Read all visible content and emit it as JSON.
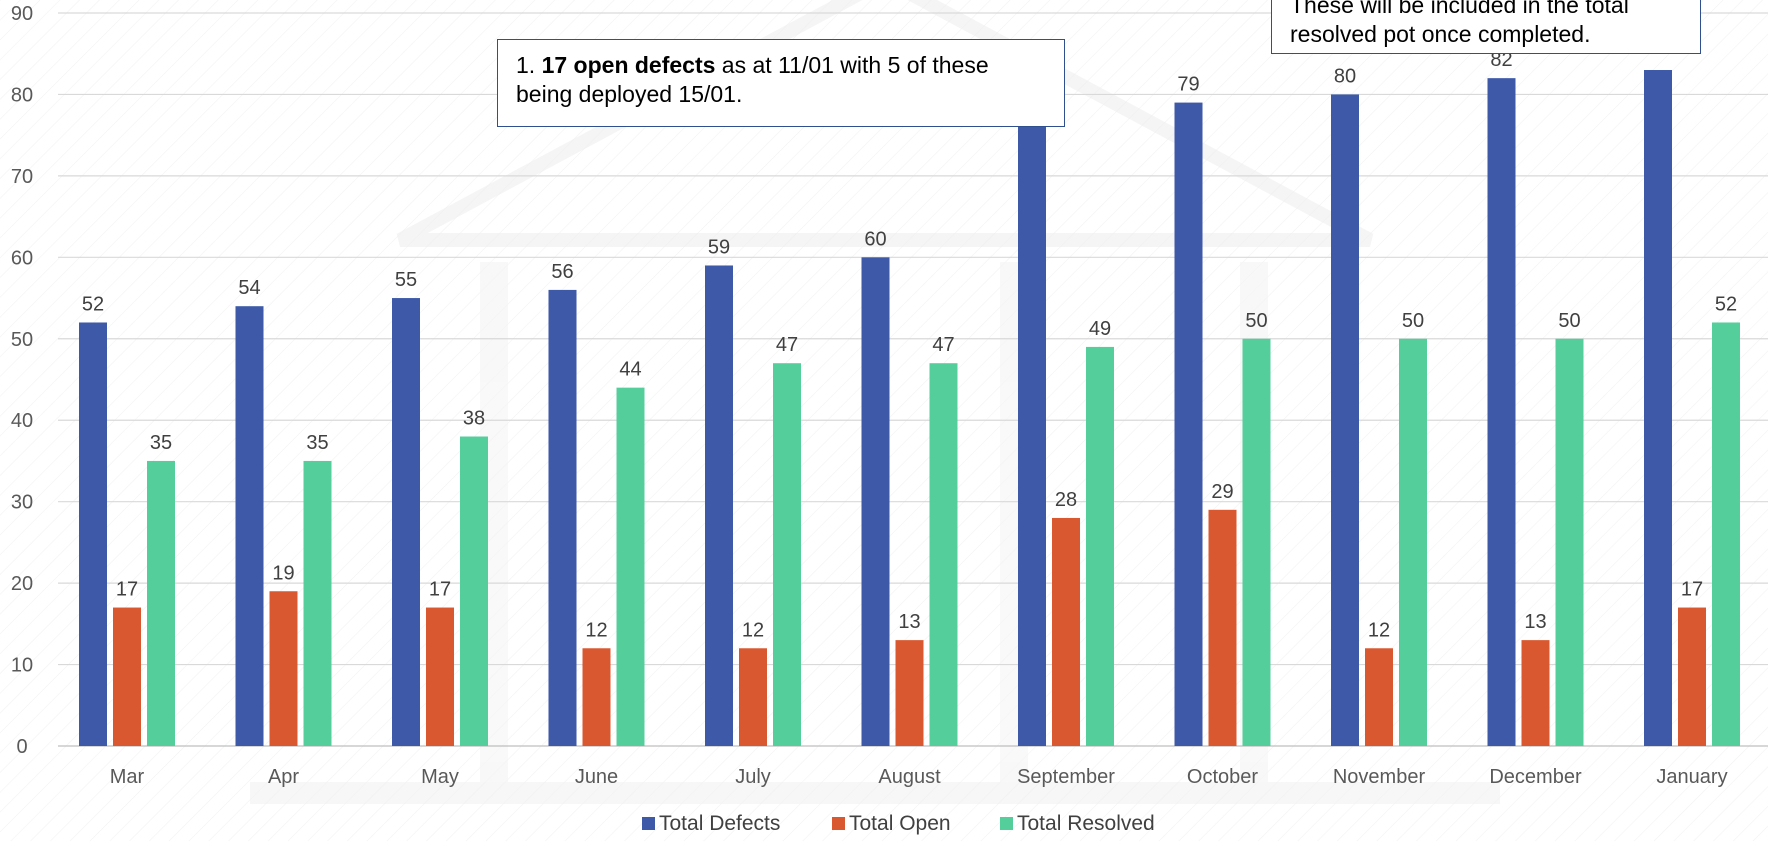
{
  "chart_data": {
    "type": "bar",
    "categories": [
      "Mar",
      "Apr",
      "May",
      "June",
      "July",
      "August",
      "September",
      "October",
      "November",
      "December",
      "January"
    ],
    "series": [
      {
        "name": "Total Defects",
        "color": "#3d59a8",
        "values": [
          52,
          54,
          55,
          56,
          59,
          60,
          78,
          79,
          80,
          82,
          83
        ],
        "labels": [
          "52",
          "54",
          "55",
          "56",
          "59",
          "60",
          "",
          "79",
          "80",
          "82",
          ""
        ]
      },
      {
        "name": "Total Open",
        "color": "#d9582f",
        "values": [
          17,
          19,
          17,
          12,
          12,
          13,
          28,
          29,
          12,
          13,
          17
        ],
        "labels": [
          "17",
          "19",
          "17",
          "12",
          "12",
          "13",
          "28",
          "29",
          "12",
          "13",
          "17"
        ]
      },
      {
        "name": "Total Resolved",
        "color": "#54cf9c",
        "values": [
          35,
          35,
          38,
          44,
          47,
          47,
          49,
          50,
          50,
          50,
          52
        ],
        "labels": [
          "35",
          "35",
          "38",
          "44",
          "47",
          "47",
          "49",
          "50",
          "50",
          "50",
          "52"
        ]
      }
    ],
    "y_ticks": [
      "0",
      "10",
      "20",
      "30",
      "40",
      "50",
      "60",
      "70",
      "80",
      "90"
    ],
    "ylim": [
      0,
      90
    ],
    "grid": true,
    "legend_position": "bottom",
    "title": "",
    "xlabel": "",
    "ylabel": ""
  },
  "annotations": {
    "callout_1": {
      "prefix": "1. ",
      "bold": "17 open defects",
      "suffix": " as at 11/01 with 5 of these being deployed 15/01."
    },
    "callout_2": {
      "line1": "These will be included in the total",
      "line2": "resolved pot once completed."
    }
  }
}
